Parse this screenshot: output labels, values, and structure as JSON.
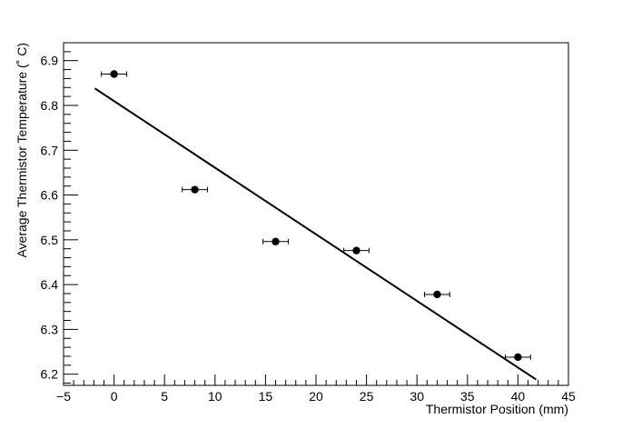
{
  "chart_data": {
    "type": "scatter",
    "title": "",
    "xlabel": "Thermistor Position (mm)",
    "ylabel": "Average Thermistor Temperature (˚ C)",
    "xlim": [
      -5,
      45
    ],
    "ylim": [
      6.175,
      6.94
    ],
    "x_ticks": [
      -5,
      0,
      5,
      10,
      15,
      20,
      25,
      30,
      35,
      40,
      45
    ],
    "y_ticks": [
      6.2,
      6.3,
      6.4,
      6.5,
      6.6,
      6.7,
      6.8,
      6.9
    ],
    "x_tick_labels": [
      "−5",
      "0",
      "5",
      "10",
      "15",
      "20",
      "25",
      "30",
      "35",
      "40",
      "45"
    ],
    "y_tick_labels": [
      "6.2",
      "6.3",
      "6.4",
      "6.5",
      "6.6",
      "6.7",
      "6.8",
      "6.9"
    ],
    "grid": false,
    "series": [
      {
        "x": [
          0,
          8,
          16,
          24,
          32,
          40
        ],
        "y": [
          6.87,
          6.612,
          6.496,
          6.476,
          6.378,
          6.238
        ],
        "xerr": [
          1.25,
          1.25,
          1.25,
          1.25,
          1.25,
          1.25
        ],
        "color": "#000000"
      }
    ],
    "fit_line": {
      "x": [
        -1.9,
        41.8
      ],
      "y": [
        6.838,
        6.188
      ],
      "color": "#000000"
    }
  }
}
